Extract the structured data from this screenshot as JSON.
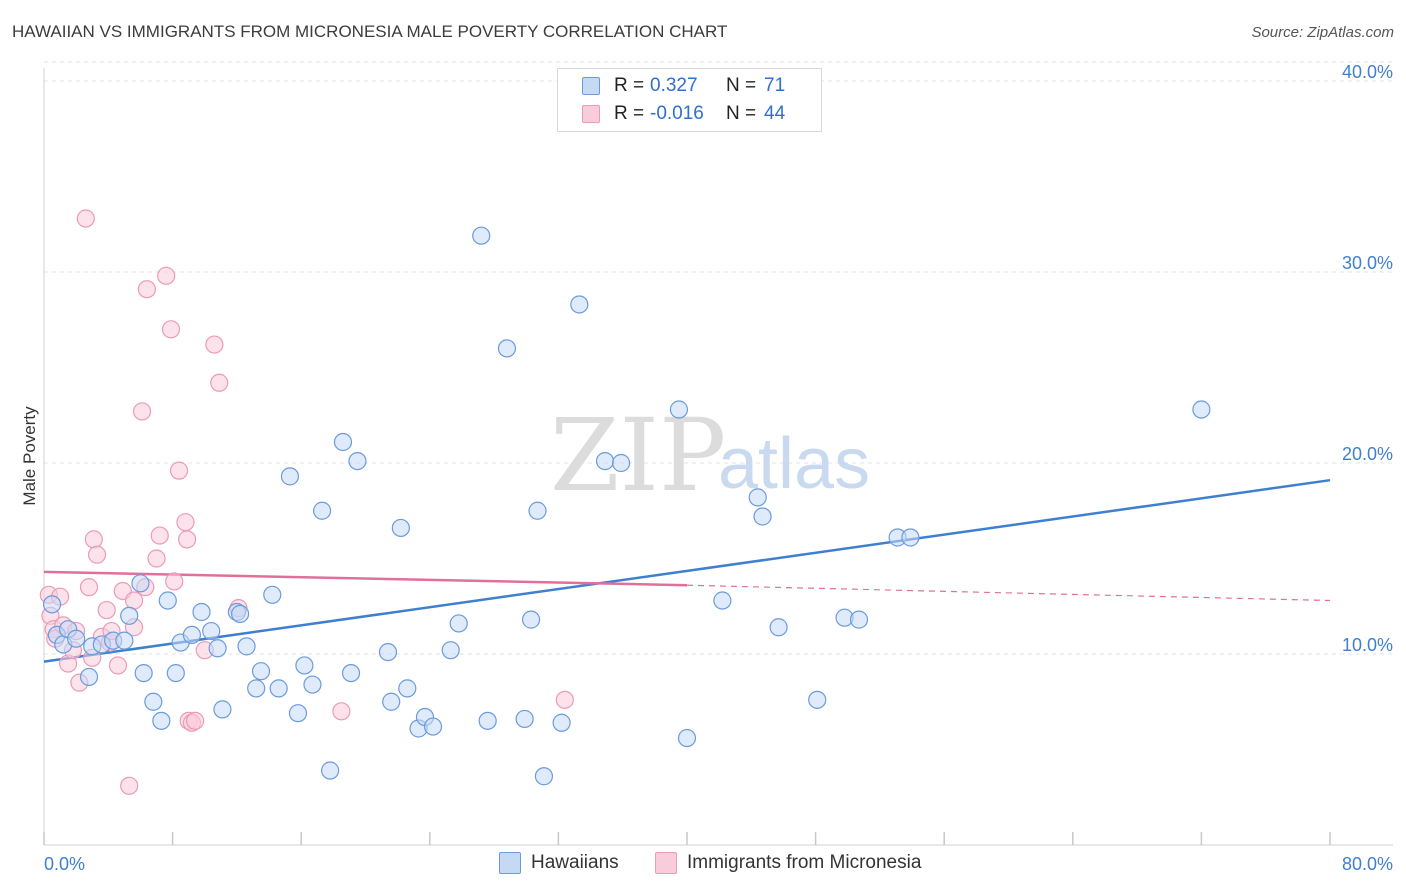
{
  "title": "HAWAIIAN VS IMMIGRANTS FROM MICRONESIA MALE POVERTY CORRELATION CHART",
  "source": "Source: ZipAtlas.com",
  "watermark": {
    "zip": "ZIP",
    "atlas": "atlas"
  },
  "colors": {
    "blue": "#3f7fd0",
    "blue_fill": "#c5d9f5",
    "blue_stroke": "#6b9bdc",
    "pink": "#e0709a",
    "pink_fill": "#f9ccdb",
    "pink_stroke": "#ec9ab7"
  },
  "legend": {
    "rows": [
      {
        "r_label": "R = ",
        "r_value": "0.327",
        "n_label": "N = ",
        "n_value": "71"
      },
      {
        "r_label": "R = ",
        "r_value": "-0.016",
        "n_label": "N = ",
        "n_value": "44"
      }
    ]
  },
  "bottom_legend": {
    "series1": "Hawaiians",
    "series2": "Immigrants from Micronesia"
  },
  "chart_data": {
    "type": "scatter",
    "title": "HAWAIIAN VS IMMIGRANTS FROM MICRONESIA MALE POVERTY CORRELATION CHART",
    "xlabel": "",
    "ylabel": "Male Poverty",
    "xlim": [
      0,
      80
    ],
    "ylim": [
      0,
      41
    ],
    "x_tick_labels": [
      "0.0%",
      "80.0%"
    ],
    "y_ticks": [
      10,
      20,
      30,
      40
    ],
    "y_tick_labels": [
      "10.0%",
      "20.0%",
      "30.0%",
      "40.0%"
    ],
    "series": [
      {
        "name": "Hawaiians",
        "trend": {
          "x0": 0,
          "y0": 9.6,
          "x1": 80,
          "y1": 19.1
        },
        "points": [
          [
            0.5,
            12.6
          ],
          [
            0.8,
            11.0
          ],
          [
            1.2,
            10.5
          ],
          [
            1.5,
            11.3
          ],
          [
            2.0,
            10.8
          ],
          [
            2.8,
            8.8
          ],
          [
            3.0,
            10.4
          ],
          [
            3.6,
            10.5
          ],
          [
            4.3,
            10.7
          ],
          [
            5.3,
            12.0
          ],
          [
            5.0,
            10.7
          ],
          [
            6.0,
            13.7
          ],
          [
            6.2,
            9.0
          ],
          [
            6.8,
            7.5
          ],
          [
            7.3,
            6.5
          ],
          [
            7.7,
            12.8
          ],
          [
            8.2,
            9.0
          ],
          [
            8.5,
            10.6
          ],
          [
            9.2,
            11.0
          ],
          [
            9.8,
            12.2
          ],
          [
            10.4,
            11.2
          ],
          [
            10.8,
            10.3
          ],
          [
            11.1,
            7.1
          ],
          [
            12.0,
            12.2
          ],
          [
            12.2,
            12.1
          ],
          [
            12.6,
            10.4
          ],
          [
            13.2,
            8.2
          ],
          [
            13.5,
            9.1
          ],
          [
            14.2,
            13.1
          ],
          [
            14.6,
            8.2
          ],
          [
            15.3,
            19.3
          ],
          [
            15.8,
            6.9
          ],
          [
            16.2,
            9.4
          ],
          [
            16.7,
            8.4
          ],
          [
            17.3,
            17.5
          ],
          [
            17.8,
            3.9
          ],
          [
            18.6,
            21.1
          ],
          [
            19.1,
            9.0
          ],
          [
            19.5,
            20.1
          ],
          [
            21.4,
            10.1
          ],
          [
            21.6,
            7.5
          ],
          [
            22.2,
            16.6
          ],
          [
            22.6,
            8.2
          ],
          [
            23.3,
            6.1
          ],
          [
            23.7,
            6.7
          ],
          [
            24.2,
            6.2
          ],
          [
            25.3,
            10.2
          ],
          [
            25.8,
            11.6
          ],
          [
            27.2,
            31.9
          ],
          [
            27.6,
            6.5
          ],
          [
            28.8,
            26.0
          ],
          [
            29.9,
            6.6
          ],
          [
            30.3,
            11.8
          ],
          [
            30.7,
            17.5
          ],
          [
            31.1,
            3.6
          ],
          [
            32.2,
            6.4
          ],
          [
            33.3,
            28.3
          ],
          [
            34.9,
            20.1
          ],
          [
            35.9,
            20.0
          ],
          [
            39.5,
            22.8
          ],
          [
            40.0,
            5.6
          ],
          [
            42.2,
            12.8
          ],
          [
            44.4,
            18.2
          ],
          [
            44.7,
            17.2
          ],
          [
            45.7,
            11.4
          ],
          [
            48.1,
            7.6
          ],
          [
            49.8,
            11.9
          ],
          [
            50.7,
            11.8
          ],
          [
            53.1,
            16.1
          ],
          [
            53.9,
            16.1
          ],
          [
            72.0,
            22.8
          ]
        ]
      },
      {
        "name": "Immigrants from Micronesia",
        "trend": {
          "x0": 0,
          "y0": 14.3,
          "x1": 40,
          "y1": 13.6
        },
        "trend_dashed": {
          "x0": 40,
          "y0": 13.6,
          "x1": 80,
          "y1": 12.8
        },
        "points": [
          [
            0.3,
            13.1
          ],
          [
            0.4,
            12.0
          ],
          [
            0.6,
            11.3
          ],
          [
            0.7,
            10.8
          ],
          [
            1.0,
            13.0
          ],
          [
            1.2,
            11.5
          ],
          [
            1.5,
            9.5
          ],
          [
            1.8,
            10.2
          ],
          [
            2.0,
            11.2
          ],
          [
            2.2,
            8.5
          ],
          [
            2.6,
            32.8
          ],
          [
            2.8,
            13.5
          ],
          [
            3.0,
            9.8
          ],
          [
            3.1,
            16.0
          ],
          [
            3.3,
            15.2
          ],
          [
            3.6,
            10.9
          ],
          [
            3.9,
            12.3
          ],
          [
            4.1,
            10.6
          ],
          [
            4.2,
            11.2
          ],
          [
            4.6,
            9.4
          ],
          [
            4.9,
            13.3
          ],
          [
            5.3,
            3.1
          ],
          [
            5.6,
            12.8
          ],
          [
            6.1,
            22.7
          ],
          [
            6.4,
            29.1
          ],
          [
            6.3,
            13.5
          ],
          [
            5.6,
            11.4
          ],
          [
            7.0,
            15.0
          ],
          [
            7.2,
            16.2
          ],
          [
            7.6,
            29.8
          ],
          [
            7.9,
            27.0
          ],
          [
            8.1,
            13.8
          ],
          [
            8.4,
            19.6
          ],
          [
            8.8,
            16.9
          ],
          [
            8.9,
            16.0
          ],
          [
            9.0,
            6.5
          ],
          [
            9.2,
            6.4
          ],
          [
            9.4,
            6.5
          ],
          [
            10.0,
            10.2
          ],
          [
            10.6,
            26.2
          ],
          [
            10.9,
            24.2
          ],
          [
            12.1,
            12.4
          ],
          [
            18.5,
            7.0
          ],
          [
            32.4,
            7.6
          ]
        ]
      }
    ]
  }
}
